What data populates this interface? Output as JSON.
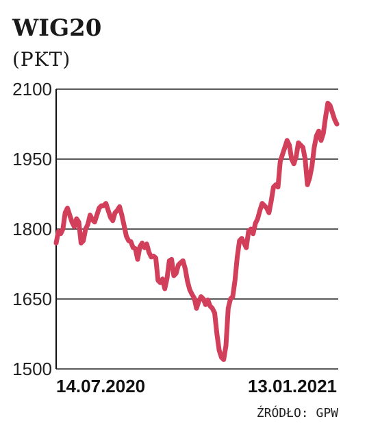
{
  "chart_data": {
    "type": "line",
    "title": "WIG20",
    "subtitle": "(PKT)",
    "y_ticks": [
      "2100",
      "1950",
      "1800",
      "1650",
      "1500"
    ],
    "y_tick_values": [
      2100,
      1950,
      1800,
      1650,
      1500
    ],
    "ylim": [
      1500,
      2100
    ],
    "x_labels": [
      "14.07.2020",
      "13.01.2021"
    ],
    "grid": true,
    "line_color": "#d13f5a",
    "series": [
      {
        "values": [
          1770,
          1795,
          1790,
          1800,
          1835,
          1845,
          1830,
          1815,
          1805,
          1822,
          1815,
          1770,
          1775,
          1800,
          1810,
          1830,
          1820,
          1815,
          1830,
          1845,
          1850,
          1850,
          1855,
          1840,
          1825,
          1818,
          1835,
          1840,
          1848,
          1830,
          1808,
          1785,
          1775,
          1773,
          1760,
          1758,
          1735,
          1762,
          1770,
          1760,
          1768,
          1750,
          1740,
          1742,
          1738,
          1690,
          1685,
          1693,
          1672,
          1695,
          1732,
          1735,
          1700,
          1705,
          1723,
          1728,
          1732,
          1715,
          1688,
          1670,
          1660,
          1652,
          1630,
          1645,
          1655,
          1650,
          1638,
          1648,
          1635,
          1630,
          1620,
          1575,
          1540,
          1525,
          1520,
          1550,
          1630,
          1650,
          1655,
          1690,
          1740,
          1775,
          1780,
          1770,
          1760,
          1795,
          1800,
          1790,
          1812,
          1822,
          1840,
          1855,
          1850,
          1845,
          1835,
          1860,
          1890,
          1895,
          1890,
          1945,
          1960,
          1975,
          1990,
          1980,
          1950,
          1940,
          1955,
          1985,
          1980,
          1975,
          1950,
          1895,
          1910,
          1935,
          1975,
          2000,
          2010,
          1990,
          2005,
          2040,
          2070,
          2065,
          2050,
          2035,
          2025
        ]
      }
    ]
  },
  "source_label": "ŹRÓDŁO: GPW"
}
